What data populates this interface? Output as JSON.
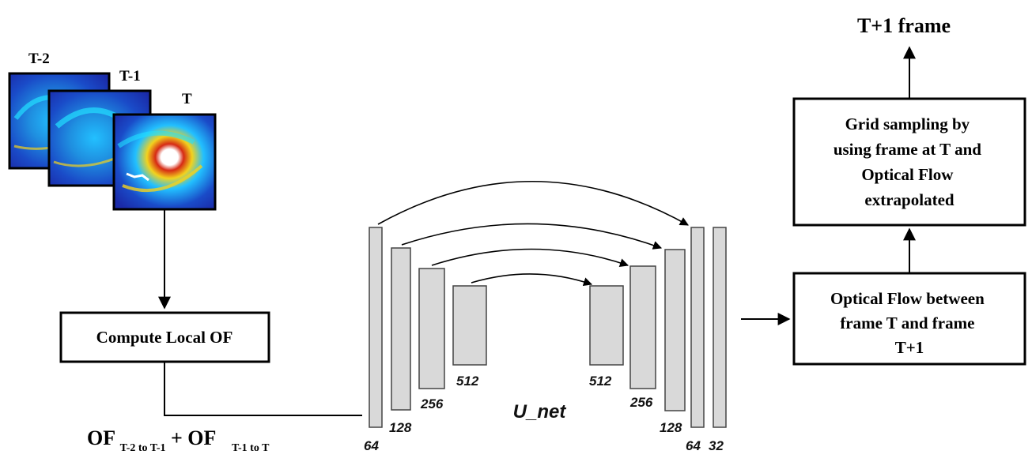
{
  "frames": {
    "labels": [
      "T-2",
      "T-1",
      "T"
    ]
  },
  "local_of_box": {
    "label": "Compute Local OF"
  },
  "of_formula": {
    "main1": "OF",
    "sub1": "T-2 to T-1",
    "plus": "+ OF",
    "sub2": "T-1 to T"
  },
  "unet": {
    "title": "U_net",
    "encoder_channels": [
      "64",
      "128",
      "256",
      "512"
    ],
    "decoder_channels": [
      "512",
      "256",
      "128",
      "64",
      "32"
    ]
  },
  "flow_box": {
    "lines": [
      "Optical Flow between",
      "frame T and frame",
      "T+1"
    ]
  },
  "grid_box": {
    "lines": [
      "Grid sampling by",
      "using frame at T and",
      "Optical Flow",
      "extrapolated"
    ]
  },
  "output_label": "T+1 frame",
  "colors": {
    "layer_fill": "#d9d9d9",
    "radar_bg": "#1a2aa8",
    "radar_mid": "#1f8fe0",
    "radar_warm": "#f2d21e",
    "radar_hot": "#d62a14"
  }
}
